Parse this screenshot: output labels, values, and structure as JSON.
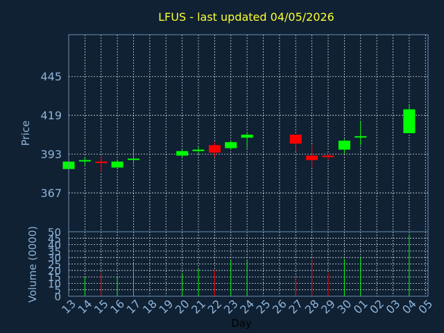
{
  "colors": {
    "background": "#0f2133",
    "title": "#ffff33",
    "axis_text": "#8fb4da",
    "up": "#00ff00",
    "down": "#ff0000",
    "grid": "#ffffff",
    "frame": "#6d8fb2"
  },
  "chart_data": {
    "type": "candlestick",
    "title": "LFUS - last updated 04/05/2026",
    "xlabel": "Day",
    "ylabel": "Price",
    "ylabel_volume": "Volume (0000)",
    "grid": true,
    "ylim": [
      341,
      473
    ],
    "yticks": [
      367,
      393,
      419,
      445
    ],
    "volume_ylim": [
      0,
      50
    ],
    "volume_ticks": [
      0,
      5,
      10,
      15,
      20,
      25,
      30,
      35,
      40,
      45,
      50
    ],
    "categories": [
      "13",
      "14",
      "15",
      "16",
      "17",
      "18",
      "19",
      "20",
      "21",
      "22",
      "23",
      "24",
      "25",
      "26",
      "27",
      "28",
      "29",
      "30",
      "01",
      "02",
      "03",
      "04",
      "05"
    ],
    "candles": [
      {
        "day": "13",
        "open": 383,
        "high": 388,
        "low": 382,
        "close": 388,
        "volume": 0
      },
      {
        "day": "14",
        "open": 389,
        "high": 391,
        "low": 385,
        "close": 389,
        "volume": 15
      },
      {
        "day": "15",
        "open": 388,
        "high": 391,
        "low": 381,
        "close": 387,
        "volume": 18
      },
      {
        "day": "16",
        "open": 384,
        "high": 389,
        "low": 384,
        "close": 388,
        "volume": 15
      },
      {
        "day": "17",
        "open": 390,
        "high": 396,
        "low": 386,
        "close": 390,
        "volume": 25
      },
      {
        "day": "20",
        "open": 392,
        "high": 396,
        "low": 391,
        "close": 395,
        "volume": 18
      },
      {
        "day": "21",
        "open": 395,
        "high": 398,
        "low": 393,
        "close": 396,
        "volume": 21
      },
      {
        "day": "22",
        "open": 399,
        "high": 401,
        "low": 391,
        "close": 394,
        "volume": 20
      },
      {
        "day": "23",
        "open": 397,
        "high": 402,
        "low": 396,
        "close": 401,
        "volume": 28
      },
      {
        "day": "24",
        "open": 404,
        "high": 408,
        "low": 397,
        "close": 406,
        "volume": 28
      },
      {
        "day": "27",
        "open": 406,
        "high": 406,
        "low": 395,
        "close": 400,
        "volume": 15
      },
      {
        "day": "28",
        "open": 392,
        "high": 399,
        "low": 384,
        "close": 389,
        "volume": 29
      },
      {
        "day": "29",
        "open": 392,
        "high": 393,
        "low": 389,
        "close": 391,
        "volume": 18
      },
      {
        "day": "30",
        "open": 396,
        "high": 403,
        "low": 393,
        "close": 402,
        "volume": 29
      },
      {
        "day": "01",
        "open": 405,
        "high": 415,
        "low": 399,
        "close": 405,
        "volume": 30
      },
      {
        "day": "04",
        "open": 407,
        "high": 426,
        "low": 407,
        "close": 423,
        "volume": 48
      }
    ]
  }
}
